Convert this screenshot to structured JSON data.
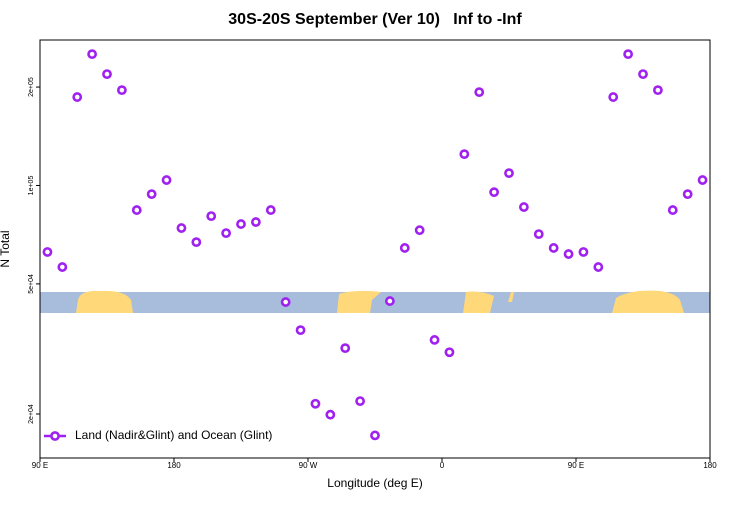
{
  "chart_data": {
    "type": "scatter",
    "title": "30S-20S September (Ver 10)   Inf to -Inf",
    "x_label": "Longitude (deg E)",
    "y_label": "N Total",
    "ylog": true,
    "xlim": [
      90,
      540
    ],
    "ylim": [
      14670,
      278600
    ],
    "xticks": [
      {
        "value": 90,
        "label": "90 E"
      },
      {
        "value": 180,
        "label": "180"
      },
      {
        "value": 270,
        "label": "90 W"
      },
      {
        "value": 360,
        "label": "0"
      },
      {
        "value": 450,
        "label": "90 E"
      },
      {
        "value": 540,
        "label": "180"
      }
    ],
    "yticks": [
      {
        "value": 20000,
        "label": "2e+04"
      },
      {
        "value": 50000,
        "label": "5e+04"
      },
      {
        "value": 100000,
        "label": "1e+05"
      },
      {
        "value": 200000,
        "label": "2e+05"
      }
    ],
    "legend_position": "bottom-left",
    "series": [
      {
        "name": "Land (Nadir&Glint) and Ocean (Glint)",
        "color": "#a020f0",
        "x": [
          95,
          105,
          115,
          125,
          135,
          145,
          155,
          165,
          175,
          185,
          195,
          205,
          215,
          225,
          235,
          245,
          255,
          265,
          275,
          285,
          295,
          305,
          315,
          325,
          335,
          345,
          355,
          365,
          375,
          385,
          395,
          405,
          415,
          425,
          435,
          445,
          455,
          465,
          475,
          485,
          495,
          505,
          515,
          525,
          535
        ],
        "values": [
          62600,
          56300,
          186400,
          252200,
          219100,
          195700,
          84100,
          94100,
          103900,
          74100,
          67100,
          80600,
          71500,
          76200,
          77300,
          84100,
          44000,
          36100,
          21500,
          19900,
          31800,
          21900,
          17200,
          44300,
          64400,
          73000,
          33700,
          30900,
          124700,
          193000,
          95400,
          109100,
          85900,
          71000,
          64400,
          61700,
          62600,
          56300,
          186400,
          252200,
          219100,
          195700,
          84100,
          94100,
          103900
        ]
      }
    ]
  }
}
